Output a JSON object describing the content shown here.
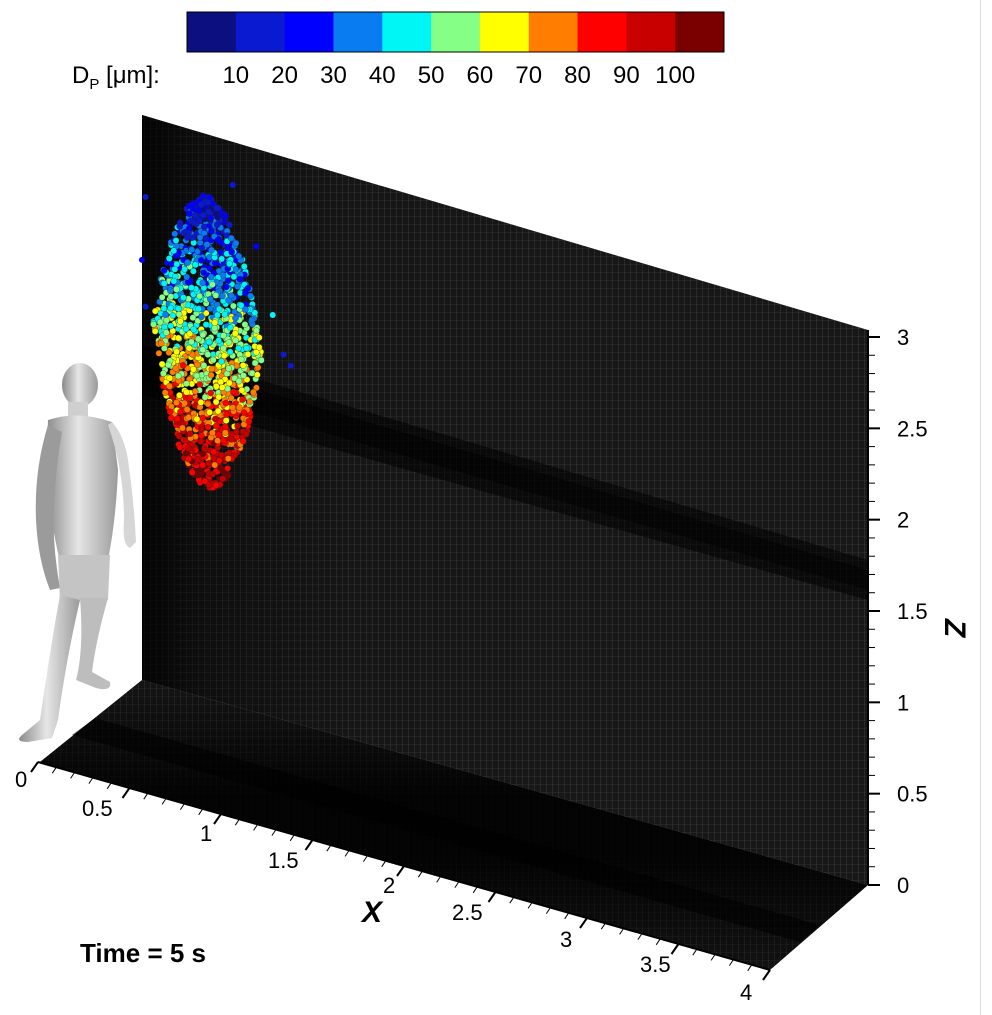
{
  "figure": {
    "time_label": "Time = 5 s",
    "colorbar": {
      "title_main": "D",
      "title_sub": "P",
      "title_rest": " [μm]:",
      "colors": [
        "#0b0f80",
        "#0a1ad0",
        "#0000ff",
        "#0a7cf2",
        "#00f5f5",
        "#86ff86",
        "#ffff00",
        "#ff7d00",
        "#ff0000",
        "#c80000",
        "#7a0000"
      ],
      "tick_labels": [
        "10",
        "20",
        "30",
        "40",
        "50",
        "60",
        "70",
        "80",
        "90",
        "100"
      ]
    }
  },
  "chart_data": {
    "type": "scatter",
    "title": "",
    "x_axis": {
      "label": "X",
      "range": [
        0,
        4
      ],
      "ticks": [
        "0",
        "0.5",
        "1",
        "1.5",
        "2",
        "2.5",
        "3",
        "3.5",
        "4"
      ]
    },
    "z_axis": {
      "label": "Z",
      "range": [
        0,
        3
      ],
      "ticks": [
        "0",
        "0.5",
        "1",
        "1.5",
        "2",
        "2.5",
        "3"
      ]
    },
    "colorbar_variable": "D_P [μm]",
    "colorbar_range": [
      5,
      105
    ],
    "particle_cloud": {
      "x_range": [
        0.05,
        0.75
      ],
      "z_range": [
        1.1,
        2.9
      ],
      "dp_range": [
        5,
        100
      ],
      "note_trend": "larger droplets (red) concentrated at bottom of cloud, smaller (blue) near top"
    }
  }
}
